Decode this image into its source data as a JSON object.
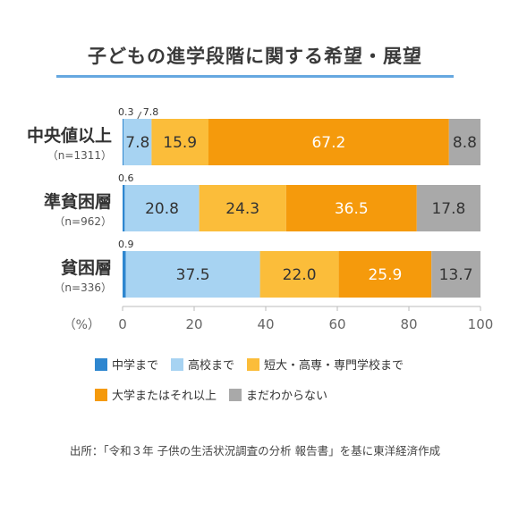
{
  "chart_data": {
    "type": "bar",
    "orientation": "horizontal",
    "stacked": true,
    "title": "子どもの進学段階に関する希望・展望",
    "categories": [
      "中央値以上",
      "準貧困層",
      "貧困層"
    ],
    "category_notes": [
      "（n=1311）",
      "（n=962）",
      "（n=336）"
    ],
    "series": [
      {
        "name": "中学まで",
        "color": "#2e86cf",
        "values": [
          0.3,
          0.6,
          0.9
        ],
        "labels": [
          "0.3",
          "0.6",
          "0.9"
        ]
      },
      {
        "name": "高校まで",
        "color": "#a7d3f2",
        "values": [
          7.8,
          20.8,
          37.5
        ],
        "labels": [
          "7.8",
          "20.8",
          "37.5"
        ]
      },
      {
        "name": "短大・高専・専門学校まで",
        "color": "#fbbd3a",
        "values": [
          15.9,
          24.3,
          22.0
        ],
        "labels": [
          "15.9",
          "24.3",
          "22.0"
        ]
      },
      {
        "name": "大学またはそれ以上",
        "color": "#f59a0c",
        "values": [
          67.2,
          36.5,
          25.9
        ],
        "labels": [
          "67.2",
          "36.5",
          "25.9"
        ]
      },
      {
        "name": "まだわからない",
        "color": "#a9a9a9",
        "values": [
          8.8,
          17.8,
          13.7
        ],
        "labels": [
          "8.8",
          "17.8",
          "13.7"
        ]
      }
    ],
    "x_ticks": [
      "0",
      "20",
      "40",
      "60",
      "80",
      "100"
    ],
    "xlim": [
      0,
      100
    ],
    "x_unit": "（%）",
    "legend_position": "bottom"
  },
  "source_note": "出所：「令和３年 子供の生活状況調査の分析 報告書」を基に東洋経済作成"
}
